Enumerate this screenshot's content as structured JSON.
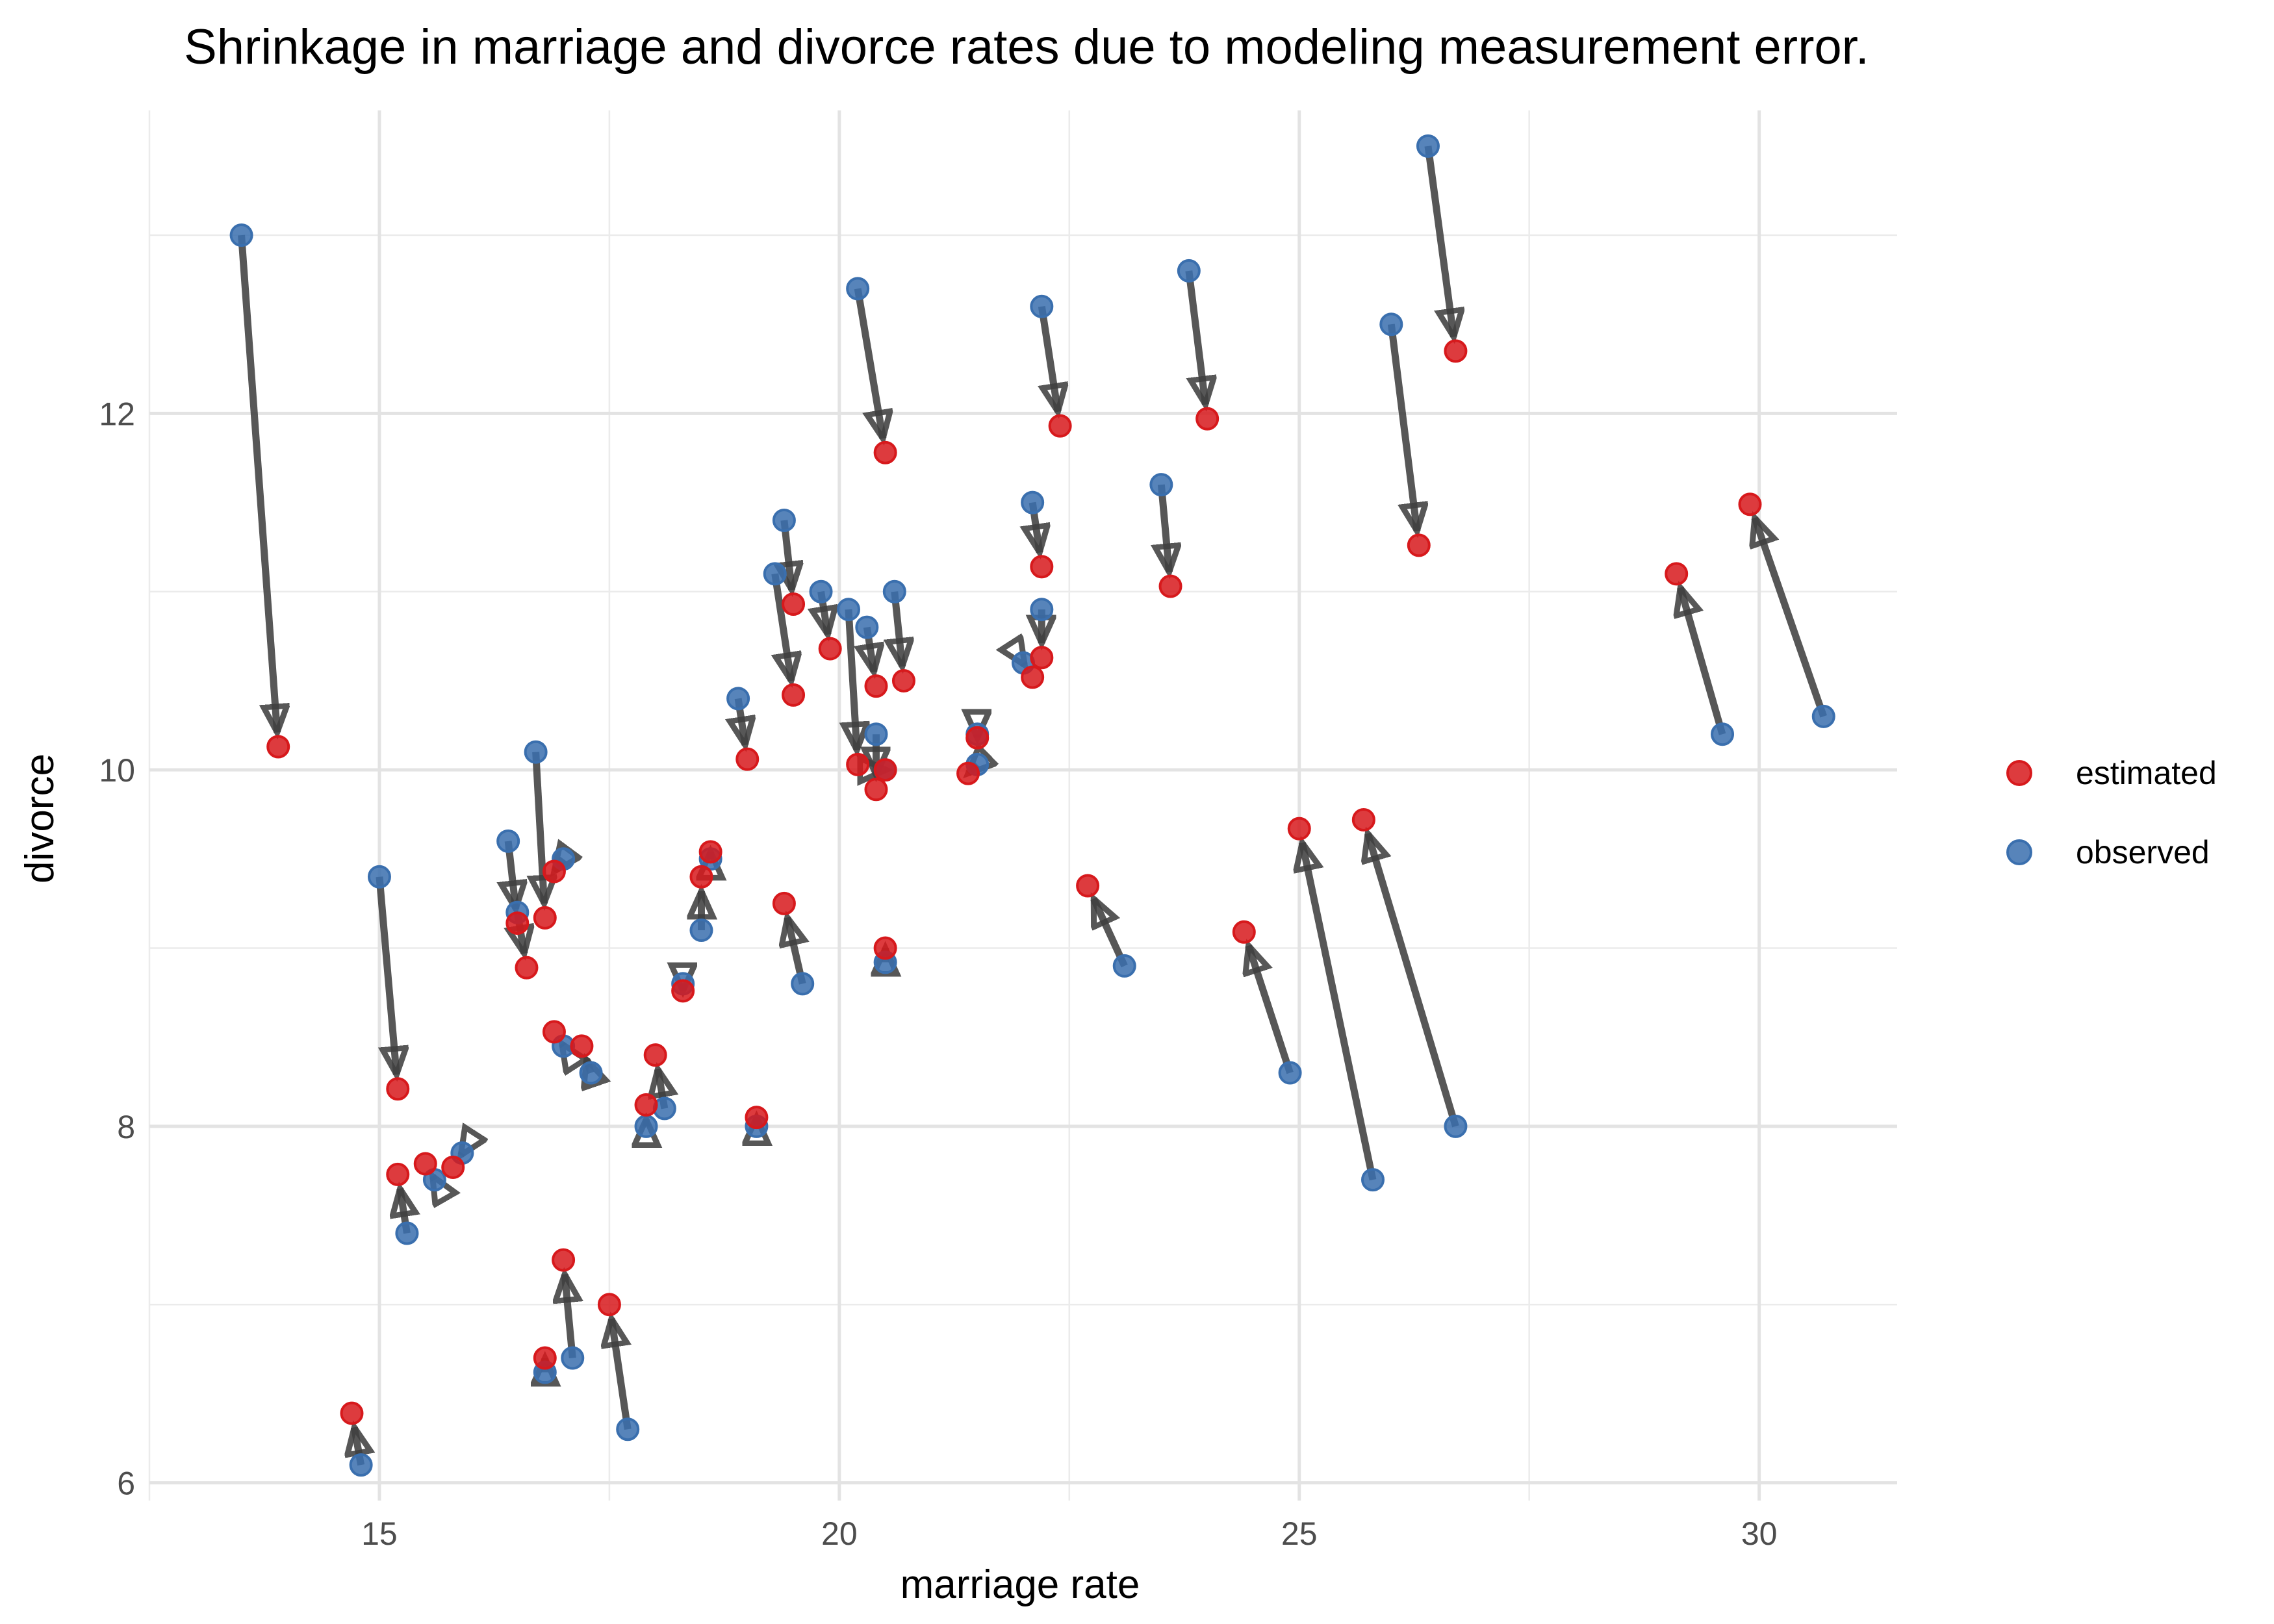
{
  "chart_data": {
    "type": "scatter",
    "title": "Shrinkage in marriage and divorce rates due to modeling measurement error.",
    "xlabel": "marriage rate",
    "ylabel": "divorce",
    "xlim": [
      12.5,
      31.5
    ],
    "ylim": [
      5.9,
      13.7
    ],
    "xticks": [
      15,
      20,
      25,
      30
    ],
    "yticks": [
      6,
      8,
      10,
      12
    ],
    "grid": true,
    "legend_position": "right",
    "series": [
      {
        "name": "estimated",
        "color": "#d7191c"
      },
      {
        "name": "observed",
        "color": "#3a6fae"
      }
    ],
    "arrow_color": "#404040",
    "pairs": [
      {
        "observed": [
          13.5,
          13.0
        ],
        "estimated": [
          13.9,
          10.13
        ]
      },
      {
        "observed": [
          15.0,
          9.4
        ],
        "estimated": [
          15.2,
          8.21
        ]
      },
      {
        "observed": [
          15.3,
          7.4
        ],
        "estimated": [
          15.2,
          7.73
        ]
      },
      {
        "observed": [
          15.6,
          7.7
        ],
        "estimated": [
          15.5,
          7.79
        ]
      },
      {
        "observed": [
          15.9,
          7.85
        ],
        "estimated": [
          15.8,
          7.77
        ]
      },
      {
        "observed": [
          14.8,
          6.1
        ],
        "estimated": [
          14.7,
          6.39
        ]
      },
      {
        "observed": [
          16.4,
          9.6
        ],
        "estimated": [
          16.5,
          9.14
        ]
      },
      {
        "observed": [
          16.5,
          9.2
        ],
        "estimated": [
          16.6,
          8.89
        ]
      },
      {
        "observed": [
          16.7,
          10.1
        ],
        "estimated": [
          16.8,
          9.17
        ]
      },
      {
        "observed": [
          17.0,
          9.5
        ],
        "estimated": [
          16.9,
          9.43
        ]
      },
      {
        "observed": [
          17.0,
          8.45
        ],
        "estimated": [
          16.9,
          8.53
        ]
      },
      {
        "observed": [
          17.3,
          8.3
        ],
        "estimated": [
          17.2,
          8.45
        ]
      },
      {
        "observed": [
          16.8,
          6.62
        ],
        "estimated": [
          16.8,
          6.7
        ]
      },
      {
        "observed": [
          17.1,
          6.7
        ],
        "estimated": [
          17.0,
          7.25
        ]
      },
      {
        "observed": [
          17.7,
          6.3
        ],
        "estimated": [
          17.5,
          7.0
        ]
      },
      {
        "observed": [
          18.1,
          8.1
        ],
        "estimated": [
          18.0,
          8.4
        ]
      },
      {
        "observed": [
          17.9,
          8.0
        ],
        "estimated": [
          17.9,
          8.12
        ]
      },
      {
        "observed": [
          18.3,
          8.8
        ],
        "estimated": [
          18.3,
          8.76
        ]
      },
      {
        "observed": [
          18.5,
          9.1
        ],
        "estimated": [
          18.5,
          9.4
        ]
      },
      {
        "observed": [
          18.6,
          9.5
        ],
        "estimated": [
          18.6,
          9.54
        ]
      },
      {
        "observed": [
          18.9,
          10.4
        ],
        "estimated": [
          19.0,
          10.06
        ]
      },
      {
        "observed": [
          19.1,
          8.0
        ],
        "estimated": [
          19.1,
          8.05
        ]
      },
      {
        "observed": [
          19.6,
          8.8
        ],
        "estimated": [
          19.4,
          9.25
        ]
      },
      {
        "observed": [
          19.4,
          11.4
        ],
        "estimated": [
          19.5,
          10.93
        ]
      },
      {
        "observed": [
          19.3,
          11.1
        ],
        "estimated": [
          19.5,
          10.42
        ]
      },
      {
        "observed": [
          19.8,
          11.0
        ],
        "estimated": [
          19.9,
          10.68
        ]
      },
      {
        "observed": [
          20.1,
          10.9
        ],
        "estimated": [
          20.2,
          10.03
        ]
      },
      {
        "observed": [
          20.2,
          12.7
        ],
        "estimated": [
          20.5,
          11.78
        ]
      },
      {
        "observed": [
          20.3,
          10.8
        ],
        "estimated": [
          20.4,
          10.47
        ]
      },
      {
        "observed": [
          20.4,
          10.2
        ],
        "estimated": [
          20.4,
          9.89
        ]
      },
      {
        "observed": [
          20.6,
          11.0
        ],
        "estimated": [
          20.7,
          10.5
        ]
      },
      {
        "observed": [
          20.5,
          8.92
        ],
        "estimated": [
          20.5,
          9.0
        ]
      },
      {
        "observed": [
          20.5,
          10.0
        ],
        "estimated": [
          20.5,
          10.0
        ]
      },
      {
        "observed": [
          21.5,
          10.2
        ],
        "estimated": [
          21.5,
          10.18
        ]
      },
      {
        "observed": [
          21.5,
          10.03
        ],
        "estimated": [
          21.4,
          9.98
        ]
      },
      {
        "observed": [
          22.1,
          11.5
        ],
        "estimated": [
          22.2,
          11.14
        ]
      },
      {
        "observed": [
          22.2,
          12.6
        ],
        "estimated": [
          22.4,
          11.93
        ]
      },
      {
        "observed": [
          22.2,
          10.9
        ],
        "estimated": [
          22.2,
          10.63
        ]
      },
      {
        "observed": [
          22.0,
          10.6
        ],
        "estimated": [
          22.1,
          10.52
        ]
      },
      {
        "observed": [
          23.1,
          8.9
        ],
        "estimated": [
          22.7,
          9.35
        ]
      },
      {
        "observed": [
          23.5,
          11.6
        ],
        "estimated": [
          23.6,
          11.03
        ]
      },
      {
        "observed": [
          23.8,
          12.8
        ],
        "estimated": [
          24.0,
          11.97
        ]
      },
      {
        "observed": [
          24.9,
          8.3
        ],
        "estimated": [
          24.4,
          9.09
        ]
      },
      {
        "observed": [
          25.8,
          7.7
        ],
        "estimated": [
          25.0,
          9.67
        ]
      },
      {
        "observed": [
          26.7,
          8.0
        ],
        "estimated": [
          25.7,
          9.72
        ]
      },
      {
        "observed": [
          26.0,
          12.5
        ],
        "estimated": [
          26.3,
          11.26
        ]
      },
      {
        "observed": [
          26.4,
          13.5
        ],
        "estimated": [
          26.7,
          12.35
        ]
      },
      {
        "observed": [
          29.6,
          10.2
        ],
        "estimated": [
          29.1,
          11.1
        ]
      },
      {
        "observed": [
          30.7,
          10.3
        ],
        "estimated": [
          29.9,
          11.49
        ]
      }
    ]
  }
}
